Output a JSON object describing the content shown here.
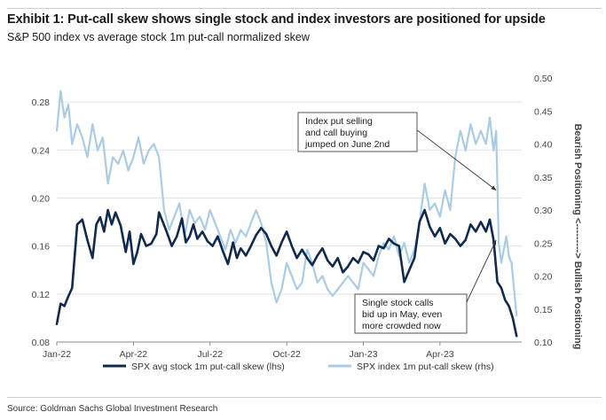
{
  "header": {
    "title": "Exhibit 1: Put-call skew shows single stock and index investors are positioned for upside",
    "subtitle": "S&P 500 index vs average stock 1m put-call normalized skew"
  },
  "footer": {
    "source": "Source: Goldman Sachs Global Investment Research"
  },
  "colors": {
    "lhs_series": "#10294f",
    "rhs_series": "#a9cce6",
    "grid": "#e3e3e3",
    "annotation_border": "#555555"
  },
  "chart_data": {
    "type": "line",
    "title": "Put-call skew shows single stock and index investors are positioned for upside",
    "x_ticks": [
      "Jan-22",
      "Apr-22",
      "Jul-22",
      "Oct-22",
      "Jan-23",
      "Apr-23"
    ],
    "x_unit": "months since Jan-2022",
    "x_range": [
      0,
      18.2
    ],
    "y_left": {
      "range": [
        0.08,
        0.3
      ],
      "ticks": [
        "0.28",
        "0.24",
        "0.20",
        "0.16",
        "0.12",
        "0.08"
      ]
    },
    "y_right": {
      "range": [
        0.1,
        0.5
      ],
      "ticks": [
        "0.50",
        "0.45",
        "0.40",
        "0.35",
        "0.30",
        "0.25",
        "0.20",
        "0.15",
        "0.10"
      ],
      "label_top": "Bearish Positioning <---------> Bullish Positioning"
    },
    "legend": {
      "position": "bottom",
      "entries": [
        "SPX avg stock 1m put-call skew (lhs)",
        "SPX index 1m put-call skew (rhs)"
      ]
    },
    "annotations": [
      {
        "lines": [
          "Index put selling",
          "and call buying",
          "jumped on June 2nd"
        ],
        "target": [
          17.2,
          0.33
        ],
        "axis": "rhs"
      },
      {
        "lines": [
          "Single stock calls",
          "bid up in May, even",
          "more crowded now"
        ],
        "target": [
          17.2,
          0.165
        ],
        "axis": "lhs"
      }
    ],
    "series": [
      {
        "name": "SPX avg stock 1m put-call skew (lhs)",
        "axis": "lhs",
        "x": [
          0,
          0.15,
          0.3,
          0.45,
          0.6,
          0.8,
          1.0,
          1.2,
          1.4,
          1.55,
          1.7,
          1.85,
          2.0,
          2.15,
          2.3,
          2.5,
          2.7,
          2.85,
          3.0,
          3.15,
          3.3,
          3.5,
          3.7,
          3.9,
          4.0,
          4.15,
          4.3,
          4.5,
          4.7,
          4.9,
          5.05,
          5.2,
          5.35,
          5.5,
          5.7,
          5.9,
          6.1,
          6.3,
          6.5,
          6.7,
          6.9,
          7.05,
          7.2,
          7.4,
          7.6,
          7.8,
          8.0,
          8.2,
          8.4,
          8.6,
          8.8,
          9.0,
          9.2,
          9.4,
          9.6,
          9.8,
          10.0,
          10.2,
          10.4,
          10.6,
          10.8,
          11.0,
          11.2,
          11.4,
          11.6,
          11.8,
          12.0,
          12.2,
          12.4,
          12.6,
          12.8,
          13.0,
          13.2,
          13.4,
          13.6,
          13.8,
          14.0,
          14.2,
          14.4,
          14.6,
          14.8,
          15.0,
          15.2,
          15.4,
          15.6,
          15.8,
          16.0,
          16.2,
          16.4,
          16.6,
          16.8,
          16.95,
          17.1,
          17.25,
          17.4,
          17.55,
          17.7,
          17.85,
          18.0
        ],
        "values": [
          0.095,
          0.112,
          0.11,
          0.118,
          0.125,
          0.178,
          0.182,
          0.165,
          0.15,
          0.178,
          0.184,
          0.172,
          0.19,
          0.178,
          0.188,
          0.177,
          0.155,
          0.172,
          0.145,
          0.155,
          0.17,
          0.16,
          0.162,
          0.17,
          0.188,
          0.18,
          0.172,
          0.16,
          0.168,
          0.183,
          0.163,
          0.168,
          0.178,
          0.166,
          0.172,
          0.164,
          0.16,
          0.168,
          0.156,
          0.145,
          0.163,
          0.15,
          0.158,
          0.152,
          0.16,
          0.169,
          0.175,
          0.17,
          0.16,
          0.152,
          0.163,
          0.172,
          0.16,
          0.15,
          0.157,
          0.15,
          0.144,
          0.152,
          0.158,
          0.148,
          0.143,
          0.15,
          0.138,
          0.143,
          0.15,
          0.146,
          0.155,
          0.153,
          0.148,
          0.16,
          0.158,
          0.166,
          0.162,
          0.16,
          0.13,
          0.14,
          0.15,
          0.18,
          0.19,
          0.176,
          0.168,
          0.175,
          0.162,
          0.17,
          0.166,
          0.16,
          0.165,
          0.178,
          0.172,
          0.18,
          0.172,
          0.182,
          0.165,
          0.13,
          0.125,
          0.115,
          0.11,
          0.1,
          0.085
        ]
      },
      {
        "name": "SPX index 1m put-call skew (rhs)",
        "axis": "rhs",
        "x": [
          0,
          0.15,
          0.3,
          0.45,
          0.6,
          0.8,
          1.0,
          1.2,
          1.4,
          1.6,
          1.8,
          2.0,
          2.2,
          2.4,
          2.6,
          2.8,
          3.0,
          3.2,
          3.4,
          3.6,
          3.8,
          4.0,
          4.2,
          4.4,
          4.6,
          4.8,
          5.0,
          5.2,
          5.4,
          5.6,
          5.8,
          6.0,
          6.2,
          6.4,
          6.6,
          6.8,
          7.0,
          7.2,
          7.4,
          7.6,
          7.8,
          8.0,
          8.2,
          8.4,
          8.6,
          8.8,
          9.0,
          9.2,
          9.4,
          9.6,
          9.8,
          10.0,
          10.2,
          10.4,
          10.6,
          10.8,
          11.0,
          11.2,
          11.4,
          11.6,
          11.8,
          12.0,
          12.2,
          12.4,
          12.6,
          12.8,
          13.0,
          13.2,
          13.4,
          13.6,
          13.8,
          14.0,
          14.2,
          14.4,
          14.6,
          14.8,
          15.0,
          15.2,
          15.4,
          15.6,
          15.8,
          16.0,
          16.2,
          16.4,
          16.6,
          16.8,
          16.95,
          17.1,
          17.2,
          17.3,
          17.4,
          17.5,
          17.6,
          17.7,
          17.8,
          17.9,
          18.0
        ],
        "values": [
          0.42,
          0.48,
          0.44,
          0.46,
          0.4,
          0.43,
          0.41,
          0.38,
          0.43,
          0.39,
          0.41,
          0.34,
          0.38,
          0.37,
          0.39,
          0.36,
          0.38,
          0.41,
          0.37,
          0.39,
          0.4,
          0.38,
          0.3,
          0.27,
          0.29,
          0.31,
          0.26,
          0.3,
          0.28,
          0.29,
          0.27,
          0.3,
          0.28,
          0.26,
          0.24,
          0.27,
          0.25,
          0.27,
          0.26,
          0.28,
          0.3,
          0.28,
          0.25,
          0.19,
          0.16,
          0.18,
          0.22,
          0.2,
          0.18,
          0.19,
          0.24,
          0.22,
          0.19,
          0.2,
          0.18,
          0.17,
          0.18,
          0.19,
          0.2,
          0.19,
          0.18,
          0.22,
          0.21,
          0.2,
          0.23,
          0.25,
          0.24,
          0.26,
          0.23,
          0.25,
          0.22,
          0.24,
          0.28,
          0.34,
          0.3,
          0.31,
          0.29,
          0.33,
          0.3,
          0.38,
          0.42,
          0.39,
          0.43,
          0.4,
          0.42,
          0.4,
          0.44,
          0.39,
          0.42,
          0.25,
          0.22,
          0.24,
          0.26,
          0.23,
          0.22,
          0.18,
          0.14
        ]
      }
    ]
  }
}
